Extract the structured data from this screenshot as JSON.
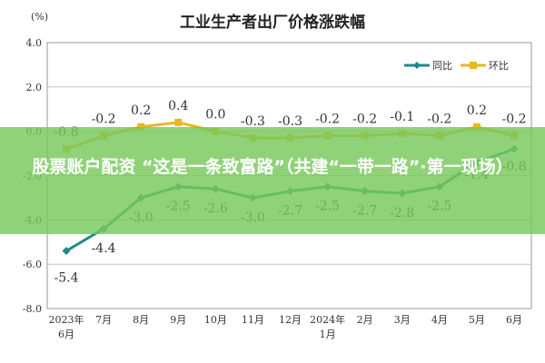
{
  "chart_data": {
    "type": "line",
    "title": "工业生产者出厂价格涨跌幅",
    "unit_label": "(%)",
    "ylim": [
      -8.0,
      4.0
    ],
    "yticks": [
      "4.0",
      "2.0",
      "0.0",
      "-2.0",
      "-4.0",
      "-6.0",
      "-8.0"
    ],
    "categories": [
      "2023年6月",
      "7月",
      "8月",
      "9月",
      "10月",
      "11月",
      "12月",
      "2024年1月",
      "2月",
      "3月",
      "4月",
      "5月",
      "6月"
    ],
    "category_lines": [
      [
        "2023年",
        "6月"
      ],
      [
        "7月"
      ],
      [
        "8月"
      ],
      [
        "9月"
      ],
      [
        "10月"
      ],
      [
        "11月"
      ],
      [
        "12月"
      ],
      [
        "2024年",
        "1月"
      ],
      [
        "2月"
      ],
      [
        "3月"
      ],
      [
        "4月"
      ],
      [
        "5月"
      ],
      [
        "6月"
      ]
    ],
    "series": [
      {
        "name": "同比",
        "color": "#1f8a8c",
        "values": [
          -5.4,
          -4.4,
          -3.0,
          -2.5,
          -2.6,
          -3.0,
          -2.7,
          -2.5,
          -2.7,
          -2.8,
          -2.5,
          -1.4,
          -0.8
        ],
        "labels": [
          "-5.4",
          "-4.4",
          "-3.0",
          "-2.5",
          "-2.6",
          "-3.0",
          "-2.7",
          "-2.5",
          "-2.7",
          "-2.8",
          "-2.5",
          "-1.4",
          "-0.8"
        ]
      },
      {
        "name": "环比",
        "color": "#e8b820",
        "values": [
          -0.8,
          -0.2,
          0.2,
          0.4,
          0.0,
          -0.3,
          -0.3,
          -0.2,
          -0.2,
          -0.1,
          -0.2,
          0.2,
          -0.2
        ],
        "labels": [
          "-0.8",
          "-0.2",
          "0.2",
          "0.4",
          "0.0",
          "-0.3",
          "-0.3",
          "-0.2",
          "-0.2",
          "-0.1",
          "-0.2",
          "0.2",
          "-0.2"
        ]
      }
    ],
    "legend_position": "top-right",
    "grid": true
  },
  "overlay": {
    "banner_text": "股票账户配资 “这是一条致富路”（共建“一带一路”·第一现场）"
  }
}
